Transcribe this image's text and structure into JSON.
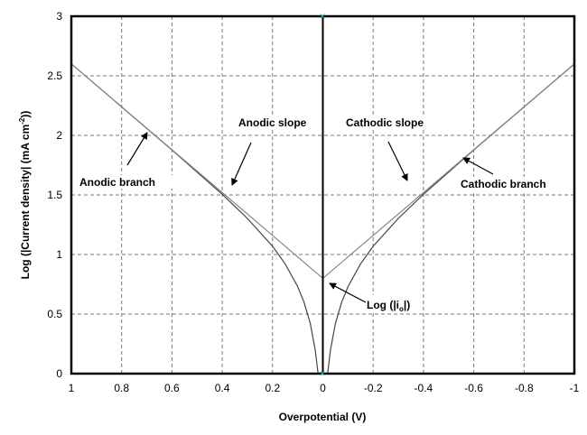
{
  "chart_data": {
    "type": "line",
    "title": "",
    "xlabel": "Overpotential (V)",
    "ylabel": "Log (|Current density| (mA cm",
    "ylabel_sup": "-2",
    "ylabel_end": "))",
    "xlim": [
      1,
      -1
    ],
    "ylim": [
      0,
      3
    ],
    "x_reversed": true,
    "grid": true,
    "x_ticks": [
      1,
      0.8,
      0.6,
      0.4,
      0.2,
      0,
      -0.2,
      -0.4,
      -0.6,
      -0.8,
      -1
    ],
    "y_ticks": [
      0,
      0.5,
      1,
      1.5,
      2,
      2.5,
      3
    ],
    "series": [
      {
        "role": "anodic branch",
        "color": "#444444",
        "x": [
          0.0185,
          0.02,
          0.03,
          0.05,
          0.075,
          0.1,
          0.15,
          0.2,
          0.3,
          0.4,
          0.6,
          0.8,
          1.0
        ],
        "y": [
          0,
          0.02,
          0.197,
          0.421,
          0.601,
          0.731,
          0.922,
          1.069,
          1.303,
          1.505,
          1.877,
          2.239,
          2.6
        ]
      },
      {
        "role": "cathodic branch",
        "color": "#444444",
        "x": [
          -0.0185,
          -0.02,
          -0.03,
          -0.05,
          -0.075,
          -0.1,
          -0.15,
          -0.2,
          -0.3,
          -0.4,
          -0.6,
          -0.8,
          -1.0
        ],
        "y": [
          0,
          0.02,
          0.197,
          0.421,
          0.601,
          0.731,
          0.922,
          1.069,
          1.303,
          1.505,
          1.877,
          2.239,
          2.6
        ]
      },
      {
        "role": "anodic slope",
        "color": "#888888",
        "x": [
          1,
          0
        ],
        "y": [
          2.6,
          0.8
        ]
      },
      {
        "role": "cathodic slope",
        "color": "#888888",
        "x": [
          0,
          -1
        ],
        "y": [
          0.8,
          2.6
        ]
      }
    ],
    "vertical_line_x": 0,
    "annotations": {
      "anodic_branch": "Anodic branch",
      "anodic_slope": "Anodic slope",
      "cathodic_slope": "Cathodic slope",
      "cathodic_branch": "Cathodic branch",
      "log_io_prefix": "Log (|i",
      "log_io_sub": "o",
      "log_io_suffix": "|)"
    }
  }
}
